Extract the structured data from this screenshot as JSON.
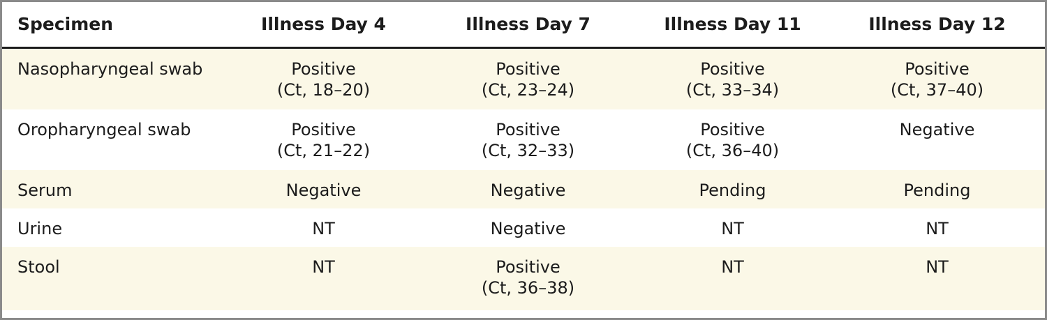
{
  "table": {
    "headers": [
      "Specimen",
      "Illness Day 4",
      "Illness Day 7",
      "Illness Day 11",
      "Illness Day 12"
    ],
    "rows": [
      {
        "specimen": "Nasopharyngeal swab",
        "cells": [
          {
            "result": "Positive",
            "ct": "(Ct, 18–20)"
          },
          {
            "result": "Positive",
            "ct": "(Ct, 23–24)"
          },
          {
            "result": "Positive",
            "ct": "(Ct, 33–34)"
          },
          {
            "result": "Positive",
            "ct": "(Ct, 37–40)"
          }
        ]
      },
      {
        "specimen": "Oropharyngeal swab",
        "cells": [
          {
            "result": "Positive",
            "ct": "(Ct, 21–22)"
          },
          {
            "result": "Positive",
            "ct": "(Ct, 32–33)"
          },
          {
            "result": "Positive",
            "ct": "(Ct, 36–40)"
          },
          {
            "result": "Negative",
            "ct": ""
          }
        ]
      },
      {
        "specimen": "Serum",
        "cells": [
          {
            "result": "Negative",
            "ct": ""
          },
          {
            "result": "Negative",
            "ct": ""
          },
          {
            "result": "Pending",
            "ct": ""
          },
          {
            "result": "Pending",
            "ct": ""
          }
        ]
      },
      {
        "specimen": "Urine",
        "cells": [
          {
            "result": "NT",
            "ct": ""
          },
          {
            "result": "Negative",
            "ct": ""
          },
          {
            "result": "NT",
            "ct": ""
          },
          {
            "result": "NT",
            "ct": ""
          }
        ]
      },
      {
        "specimen": "Stool",
        "cells": [
          {
            "result": "NT",
            "ct": ""
          },
          {
            "result": "Positive",
            "ct": "(Ct, 36–38)"
          },
          {
            "result": "NT",
            "ct": ""
          },
          {
            "result": "NT",
            "ct": ""
          }
        ]
      }
    ]
  },
  "colors": {
    "shade": "#fbf8e7",
    "border": "#8a8a8a",
    "rule": "#1c1c1c"
  }
}
